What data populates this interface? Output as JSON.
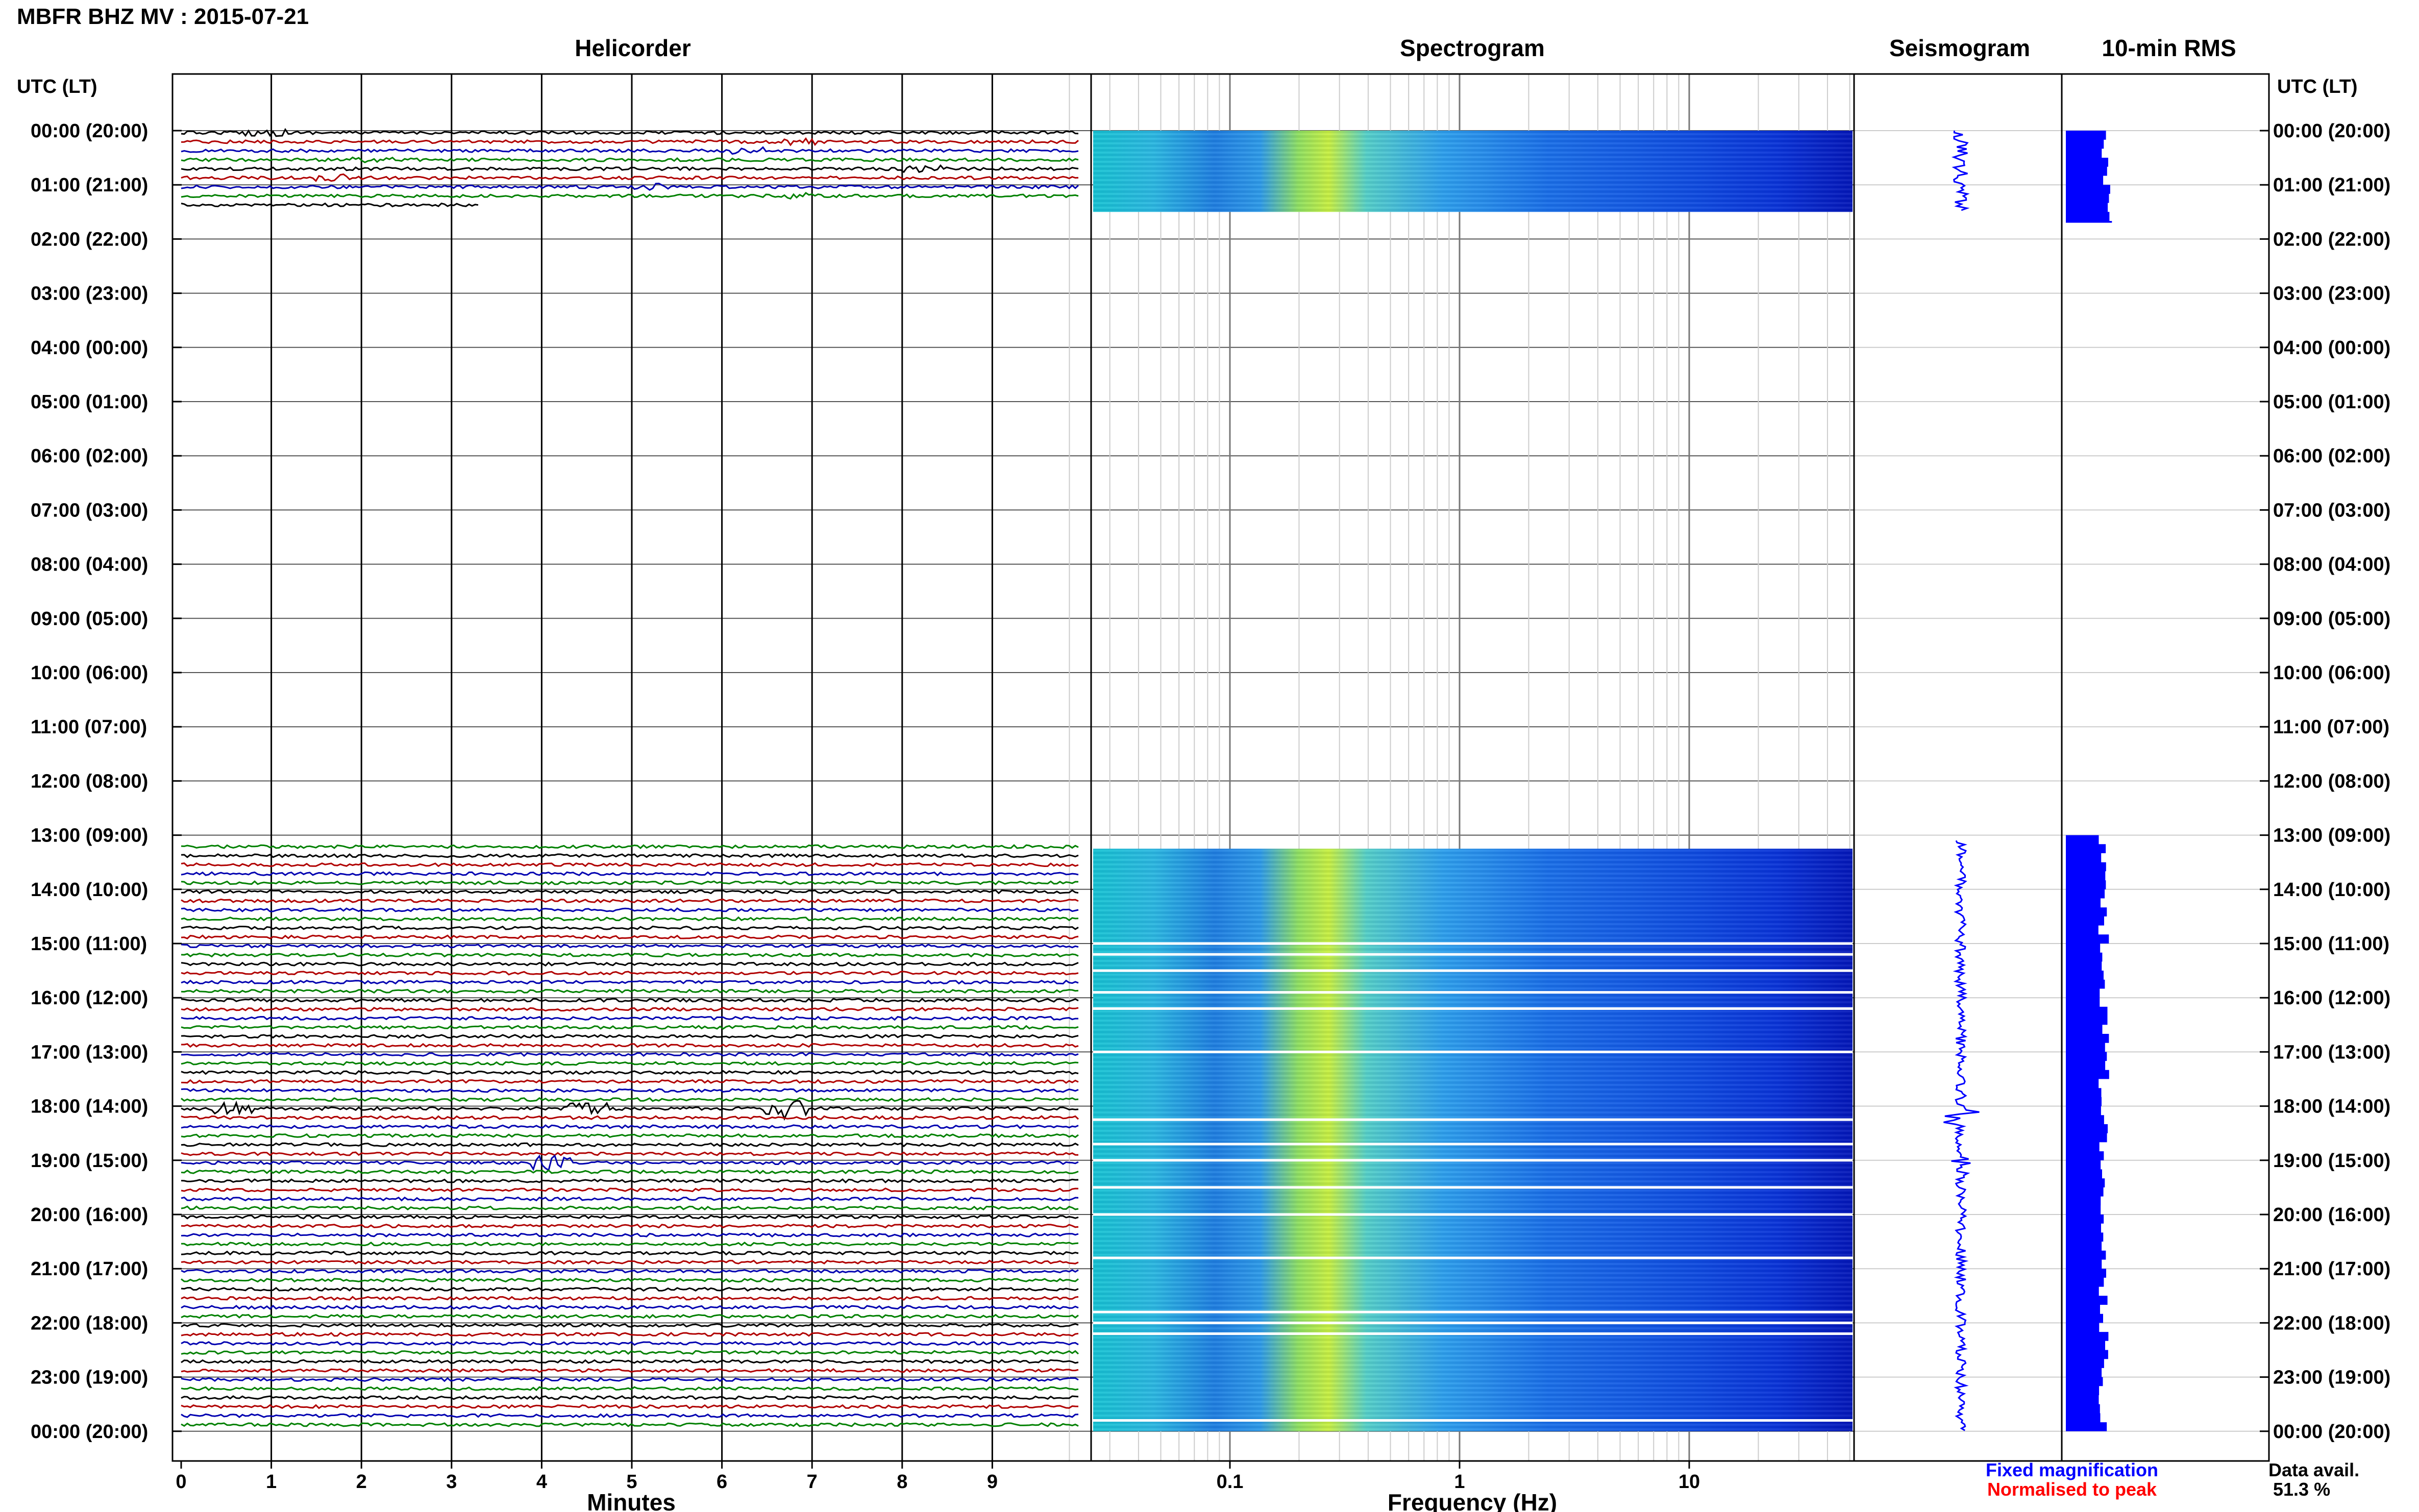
{
  "header": {
    "title": "MBFR BHZ MV : 2015-07-21",
    "utc_lt_left": "UTC (LT)",
    "utc_lt_right": "UTC (LT)"
  },
  "panels": {
    "helicorder": "Helicorder",
    "spectrogram": "Spectrogram",
    "seismogram": "Seismogram",
    "rms": "10-min RMS"
  },
  "axes": {
    "minutes_label": "Minutes",
    "frequency_label": "Frequency (Hz)",
    "minute_ticks": [
      "0",
      "1",
      "2",
      "3",
      "4",
      "5",
      "6",
      "7",
      "8",
      "9"
    ],
    "freq_ticks": [
      "0.1",
      "1",
      "10"
    ]
  },
  "time_labels": [
    "00:00 (20:00)",
    "01:00 (21:00)",
    "02:00 (22:00)",
    "03:00 (23:00)",
    "04:00 (00:00)",
    "05:00 (01:00)",
    "06:00 (02:00)",
    "07:00 (03:00)",
    "08:00 (04:00)",
    "09:00 (05:00)",
    "10:00 (06:00)",
    "11:00 (07:00)",
    "12:00 (08:00)",
    "13:00 (09:00)",
    "14:00 (10:00)",
    "15:00 (11:00)",
    "16:00 (12:00)",
    "17:00 (13:00)",
    "18:00 (14:00)",
    "19:00 (15:00)",
    "20:00 (16:00)",
    "21:00 (17:00)",
    "22:00 (18:00)",
    "23:00 (19:00)",
    "00:00 (20:00)"
  ],
  "legend": {
    "fixed": "Fixed magnification",
    "normalised": "Normalised to peak",
    "data_avail_label": "Data avail.",
    "data_avail_value": "51.3 %"
  },
  "colors": {
    "trace_cycle": [
      "#000000",
      "#b00000",
      "#0000b0",
      "#008000"
    ],
    "fixed": "#0000ff",
    "normalised": "#ff0000",
    "rms_fill": "#0000ff"
  },
  "chart_data": {
    "type": "helicorder",
    "station": "MBFR",
    "channel": "BHZ",
    "network": "MV",
    "date": "2015-07-21",
    "time_range_utc": [
      "00:00",
      "24:00"
    ],
    "xlim_minutes": [
      0,
      10
    ],
    "freq_range_hz": [
      0.02,
      50
    ],
    "data_segments_utc": [
      [
        "00:00",
        "01:30"
      ],
      [
        "13:15",
        "24:00"
      ]
    ],
    "data_availability_percent": 51.3,
    "helicorder_event_near": "18:10"
  }
}
